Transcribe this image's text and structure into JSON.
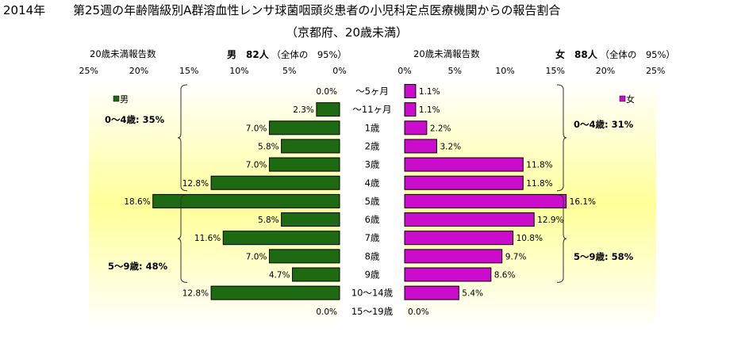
{
  "title": {
    "year": "2014年",
    "main": "第25週の年齢階級別A群溶血性レンサ球菌咽頭炎患者の小児科定点医療機関からの報告割合",
    "sub": "（京都府、20歳未満）"
  },
  "headers": {
    "left_count_label": "20歳未満報告数",
    "left_sex_summary": "男　82人",
    "left_share": "（全体の　95%）",
    "right_count_label": "20歳未満報告数",
    "right_sex_summary": "女　88人",
    "right_share": "（全体の　95%）"
  },
  "chart_data": {
    "type": "bar",
    "orientation": "horizontal",
    "layout": "butterfly",
    "categories": [
      "～5ヶ月",
      "～11ヶ月",
      "1歳",
      "2歳",
      "3歳",
      "4歳",
      "5歳",
      "6歳",
      "7歳",
      "8歳",
      "9歳",
      "10～14歳",
      "15～19歳"
    ],
    "x_ticks": [
      "25%",
      "20%",
      "15%",
      "10%",
      "5%",
      "0%"
    ],
    "x_range": [
      0,
      25
    ],
    "series": [
      {
        "name": "男",
        "side": "left",
        "color": "#1e6a12",
        "values": [
          0.0,
          2.3,
          7.0,
          5.8,
          7.0,
          12.8,
          18.6,
          5.8,
          11.6,
          7.0,
          4.7,
          12.8,
          0.0
        ],
        "labels": [
          "0.0%",
          "2.3%",
          "7.0%",
          "5.8%",
          "7.0%",
          "12.8%",
          "18.6%",
          "5.8%",
          "11.6%",
          "7.0%",
          "4.7%",
          "12.8%",
          "0.0%"
        ]
      },
      {
        "name": "女",
        "side": "right",
        "color": "#cc0ccc",
        "values": [
          1.1,
          1.1,
          2.2,
          3.2,
          11.8,
          11.8,
          16.1,
          12.9,
          10.8,
          9.7,
          8.6,
          5.4,
          0.0
        ],
        "labels": [
          "1.1%",
          "1.1%",
          "2.2%",
          "3.2%",
          "11.8%",
          "11.8%",
          "16.1%",
          "12.9%",
          "10.8%",
          "9.7%",
          "8.6%",
          "5.4%",
          "0.0%"
        ]
      }
    ],
    "annotations": {
      "male_0_4": "0～4歳: 35%",
      "male_5_9": "5～9歳: 48%",
      "female_0_4": "0～4歳: 31%",
      "female_5_9": "5～9歳: 58%"
    },
    "background": "gradient white-yellow-white"
  }
}
